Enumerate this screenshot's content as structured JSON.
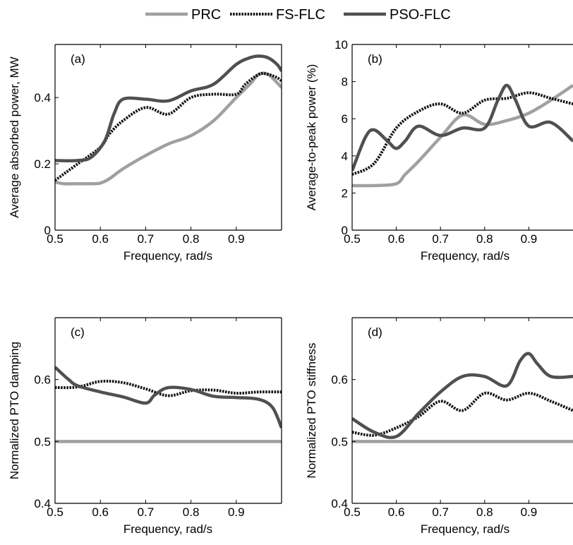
{
  "legend": [
    {
      "label": "PRC",
      "color": "#a0a0a0",
      "dash": "solid"
    },
    {
      "label": "FS-FLC",
      "color": "#111111",
      "dash": "dotted"
    },
    {
      "label": "PSO-FLC",
      "color": "#505050",
      "dash": "solid"
    }
  ],
  "chart_data": [
    {
      "panel": "(a)",
      "type": "line",
      "xlabel": "Frequency, rad/s",
      "ylabel": "Average absorbed power, MW",
      "xlim": [
        0.5,
        1.0
      ],
      "ylim": [
        0,
        0.56
      ],
      "xticks": [
        0.5,
        0.6,
        0.7,
        0.8,
        0.9
      ],
      "yticks": [
        0,
        0.2,
        0.4
      ],
      "series": [
        {
          "name": "PRC",
          "x": [
            0.5,
            0.52,
            0.55,
            0.58,
            0.6,
            0.62,
            0.65,
            0.7,
            0.75,
            0.8,
            0.85,
            0.9,
            0.93,
            0.95,
            0.97,
            0.99,
            1.0
          ],
          "y": [
            0.145,
            0.14,
            0.14,
            0.14,
            0.142,
            0.155,
            0.185,
            0.225,
            0.26,
            0.285,
            0.33,
            0.4,
            0.44,
            0.47,
            0.47,
            0.445,
            0.43
          ]
        },
        {
          "name": "FS-FLC",
          "x": [
            0.5,
            0.55,
            0.6,
            0.62,
            0.65,
            0.7,
            0.75,
            0.8,
            0.85,
            0.9,
            0.92,
            0.95,
            0.97,
            0.99,
            1.0
          ],
          "y": [
            0.15,
            0.2,
            0.25,
            0.29,
            0.33,
            0.37,
            0.35,
            0.4,
            0.41,
            0.41,
            0.44,
            0.47,
            0.47,
            0.46,
            0.45
          ]
        },
        {
          "name": "PSO-FLC",
          "x": [
            0.5,
            0.55,
            0.58,
            0.61,
            0.63,
            0.65,
            0.7,
            0.75,
            0.8,
            0.85,
            0.9,
            0.93,
            0.95,
            0.97,
            0.99,
            1.0
          ],
          "y": [
            0.21,
            0.21,
            0.22,
            0.27,
            0.35,
            0.395,
            0.395,
            0.39,
            0.42,
            0.44,
            0.5,
            0.52,
            0.525,
            0.52,
            0.5,
            0.48
          ]
        }
      ]
    },
    {
      "panel": "(b)",
      "type": "line",
      "xlabel": "Frequency, rad/s",
      "ylabel": "Average-to-peak power (%)",
      "xlim": [
        0.5,
        1.0
      ],
      "ylim": [
        0,
        10
      ],
      "xticks": [
        0.5,
        0.6,
        0.7,
        0.8,
        0.9
      ],
      "yticks": [
        0,
        2,
        4,
        6,
        8,
        10
      ],
      "series": [
        {
          "name": "PRC",
          "x": [
            0.5,
            0.55,
            0.6,
            0.62,
            0.65,
            0.7,
            0.75,
            0.8,
            0.85,
            0.9,
            0.95,
            1.0
          ],
          "y": [
            2.4,
            2.4,
            2.5,
            3.0,
            3.7,
            5.0,
            6.2,
            5.7,
            5.9,
            6.3,
            7.0,
            7.8
          ]
        },
        {
          "name": "FS-FLC",
          "x": [
            0.5,
            0.55,
            0.6,
            0.65,
            0.7,
            0.75,
            0.8,
            0.85,
            0.9,
            0.95,
            1.0
          ],
          "y": [
            3.0,
            3.6,
            5.5,
            6.4,
            6.8,
            6.3,
            7.0,
            7.1,
            7.4,
            7.1,
            6.8
          ]
        },
        {
          "name": "PSO-FLC",
          "x": [
            0.5,
            0.53,
            0.55,
            0.58,
            0.6,
            0.62,
            0.65,
            0.7,
            0.75,
            0.8,
            0.83,
            0.85,
            0.87,
            0.9,
            0.95,
            1.0
          ],
          "y": [
            3.2,
            5.0,
            5.4,
            4.8,
            4.4,
            4.8,
            5.6,
            5.1,
            5.5,
            5.5,
            7.0,
            7.8,
            7.0,
            5.6,
            5.8,
            4.8
          ]
        }
      ]
    },
    {
      "panel": "(c)",
      "type": "line",
      "xlabel": "Frequency, rad/s",
      "ylabel": "Normalized PTO damping",
      "xlim": [
        0.5,
        1.0
      ],
      "ylim": [
        0.4,
        0.7
      ],
      "xticks": [
        0.5,
        0.6,
        0.7,
        0.8,
        0.9
      ],
      "yticks": [
        0.4,
        0.5,
        0.6
      ],
      "series": [
        {
          "name": "PRC",
          "x": [
            0.5,
            1.0
          ],
          "y": [
            0.5,
            0.5
          ]
        },
        {
          "name": "FS-FLC",
          "x": [
            0.5,
            0.55,
            0.6,
            0.65,
            0.7,
            0.75,
            0.8,
            0.85,
            0.9,
            0.95,
            1.0
          ],
          "y": [
            0.587,
            0.588,
            0.597,
            0.595,
            0.585,
            0.574,
            0.582,
            0.583,
            0.578,
            0.58,
            0.58
          ]
        },
        {
          "name": "PSO-FLC",
          "x": [
            0.5,
            0.53,
            0.55,
            0.6,
            0.65,
            0.7,
            0.72,
            0.75,
            0.8,
            0.85,
            0.9,
            0.95,
            0.98,
            1.0
          ],
          "y": [
            0.62,
            0.6,
            0.59,
            0.58,
            0.572,
            0.562,
            0.575,
            0.587,
            0.584,
            0.573,
            0.571,
            0.568,
            0.555,
            0.522
          ]
        }
      ]
    },
    {
      "panel": "(d)",
      "type": "line",
      "xlabel": "Frequency, rad/s",
      "ylabel": "Normalized PTO stiffness",
      "xlim": [
        0.5,
        1.0
      ],
      "ylim": [
        0.4,
        0.7
      ],
      "xticks": [
        0.5,
        0.6,
        0.7,
        0.8,
        0.9
      ],
      "yticks": [
        0.4,
        0.5,
        0.6
      ],
      "series": [
        {
          "name": "PRC",
          "x": [
            0.5,
            1.0
          ],
          "y": [
            0.5,
            0.5
          ]
        },
        {
          "name": "FS-FLC",
          "x": [
            0.5,
            0.55,
            0.6,
            0.65,
            0.7,
            0.75,
            0.8,
            0.85,
            0.9,
            0.95,
            1.0
          ],
          "y": [
            0.515,
            0.51,
            0.522,
            0.54,
            0.565,
            0.55,
            0.578,
            0.567,
            0.578,
            0.565,
            0.55
          ]
        },
        {
          "name": "PSO-FLC",
          "x": [
            0.5,
            0.55,
            0.6,
            0.65,
            0.7,
            0.75,
            0.8,
            0.85,
            0.88,
            0.9,
            0.92,
            0.95,
            1.0
          ],
          "y": [
            0.537,
            0.515,
            0.508,
            0.545,
            0.58,
            0.605,
            0.605,
            0.59,
            0.63,
            0.642,
            0.625,
            0.605,
            0.605
          ]
        }
      ]
    }
  ]
}
